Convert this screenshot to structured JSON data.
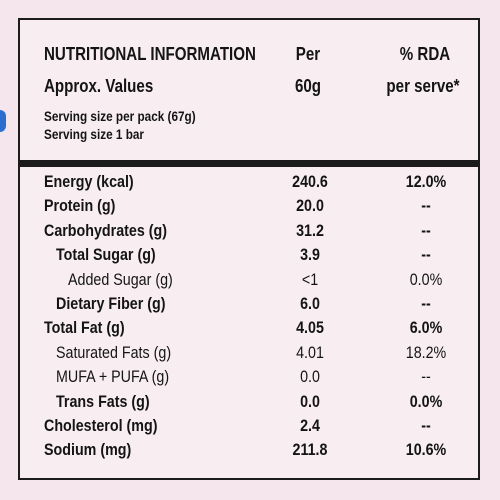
{
  "header": {
    "title": "NUTRITIONAL INFORMATION",
    "per_label": "Per",
    "rda_label": "% RDA",
    "approx": "Approx. Values",
    "per_amount": "60g",
    "rda_sub": "per serve*",
    "serving_pack": "Serving size per pack (67g)",
    "serving_bar": "Serving size 1 bar"
  },
  "rows": [
    {
      "label": "Energy (kcal)",
      "per": "240.6",
      "rda": "12.0%"
    },
    {
      "label": "Protein (g)",
      "per": "20.0",
      "rda": "--"
    },
    {
      "label": "Carbohydrates (g)",
      "per": "31.2",
      "rda": "--"
    },
    {
      "label": "Total Sugar (g)",
      "per": "3.9",
      "rda": "--"
    },
    {
      "label": "Added Sugar (g)",
      "per": "<1",
      "rda": "0.0%"
    },
    {
      "label": "Dietary Fiber (g)",
      "per": "6.0",
      "rda": "--"
    },
    {
      "label": "Total Fat (g)",
      "per": "4.05",
      "rda": "6.0%"
    },
    {
      "label": "Saturated Fats (g)",
      "per": "4.01",
      "rda": "18.2%"
    },
    {
      "label": "MUFA + PUFA (g)",
      "per": "0.0",
      "rda": "--"
    },
    {
      "label": "Trans Fats (g)",
      "per": "0.0",
      "rda": "0.0%"
    },
    {
      "label": "Cholesterol (mg)",
      "per": "2.4",
      "rda": "--"
    },
    {
      "label": "Sodium (mg)",
      "per": "211.8",
      "rda": "10.6%"
    }
  ],
  "colors": {
    "background": "#f4e6ec",
    "text": "#141414",
    "accent": "#2a6fd0"
  }
}
